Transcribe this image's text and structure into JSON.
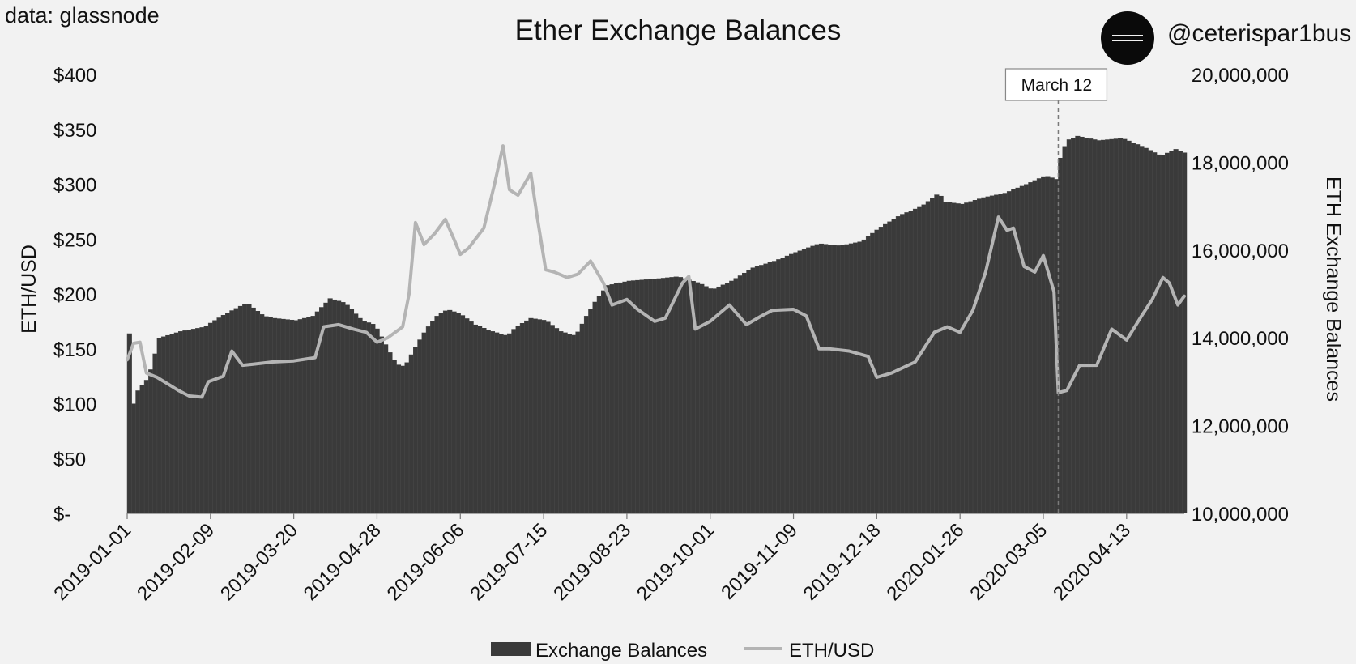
{
  "header": {
    "source": "data: glassnode",
    "handle": "@ceterispar1bus"
  },
  "colors": {
    "background": "#f2f2f2",
    "bars": "#3a3a3a",
    "line": "#b4b4b4",
    "text": "#111111"
  },
  "icons": {
    "avatar": "circle-logo-icon"
  },
  "chart_data": {
    "type": "bar",
    "title": "Ether Exchange Balances",
    "ylabel_left": "ETH/USD",
    "ylabel_right": "ETH Exchange Balances",
    "y_left_range": [
      0,
      400
    ],
    "y_right_range": [
      10000000,
      20000000
    ],
    "y_left_ticks": [
      "$400",
      "$350",
      "$300",
      "$250",
      "$200",
      "$150",
      "$100",
      "$50",
      "$-"
    ],
    "y_right_ticks": [
      "20,000,000",
      "18,000,000",
      "16,000,000",
      "14,000,000",
      "12,000,000",
      "10,000,000"
    ],
    "x_tick_labels": [
      "2019-01-01",
      "2019-02-09",
      "2019-03-20",
      "2019-04-28",
      "2019-06-06",
      "2019-07-15",
      "2019-08-23",
      "2019-10-01",
      "2019-11-09",
      "2019-12-18",
      "2020-01-26",
      "2020-03-05",
      "2020-04-13"
    ],
    "x_range": [
      "2019-01-01",
      "2020-05-10"
    ],
    "grid": false,
    "legend_position": "bottom",
    "annotation": {
      "label": "March 12",
      "date": "2020-03-12"
    },
    "series": [
      {
        "name": "Exchange Balances",
        "kind": "bar",
        "axis": "right",
        "points": [
          [
            "2019-01-01",
            14100000
          ],
          [
            "2019-01-03",
            12500000
          ],
          [
            "2019-01-05",
            12800000
          ],
          [
            "2019-01-10",
            13100000
          ],
          [
            "2019-01-15",
            14000000
          ],
          [
            "2019-01-25",
            14150000
          ],
          [
            "2019-02-05",
            14250000
          ],
          [
            "2019-02-15",
            14550000
          ],
          [
            "2019-02-25",
            14800000
          ],
          [
            "2019-03-05",
            14500000
          ],
          [
            "2019-03-10",
            14450000
          ],
          [
            "2019-03-20",
            14400000
          ],
          [
            "2019-03-28",
            14500000
          ],
          [
            "2019-04-05",
            14900000
          ],
          [
            "2019-04-12",
            14800000
          ],
          [
            "2019-04-20",
            14400000
          ],
          [
            "2019-04-26",
            14300000
          ],
          [
            "2019-05-01",
            13850000
          ],
          [
            "2019-05-06",
            13400000
          ],
          [
            "2019-05-10",
            13350000
          ],
          [
            "2019-05-15",
            13800000
          ],
          [
            "2019-05-20",
            14200000
          ],
          [
            "2019-05-25",
            14500000
          ],
          [
            "2019-05-30",
            14650000
          ],
          [
            "2019-06-05",
            14550000
          ],
          [
            "2019-06-12",
            14300000
          ],
          [
            "2019-06-20",
            14150000
          ],
          [
            "2019-06-27",
            14050000
          ],
          [
            "2019-07-01",
            14250000
          ],
          [
            "2019-07-08",
            14450000
          ],
          [
            "2019-07-15",
            14400000
          ],
          [
            "2019-07-22",
            14150000
          ],
          [
            "2019-07-29",
            14050000
          ],
          [
            "2019-08-03",
            14500000
          ],
          [
            "2019-08-08",
            14900000
          ],
          [
            "2019-08-13",
            15200000
          ],
          [
            "2019-08-23",
            15300000
          ],
          [
            "2019-09-05",
            15350000
          ],
          [
            "2019-09-15",
            15400000
          ],
          [
            "2019-09-25",
            15250000
          ],
          [
            "2019-10-01",
            15100000
          ],
          [
            "2019-10-10",
            15300000
          ],
          [
            "2019-10-20",
            15600000
          ],
          [
            "2019-10-30",
            15750000
          ],
          [
            "2019-11-09",
            15950000
          ],
          [
            "2019-11-20",
            16150000
          ],
          [
            "2019-11-30",
            16100000
          ],
          [
            "2019-12-10",
            16200000
          ],
          [
            "2019-12-18",
            16500000
          ],
          [
            "2019-12-28",
            16800000
          ],
          [
            "2020-01-07",
            17000000
          ],
          [
            "2020-01-15",
            17300000
          ],
          [
            "2020-01-18",
            17100000
          ],
          [
            "2020-01-26",
            17050000
          ],
          [
            "2020-02-05",
            17200000
          ],
          [
            "2020-02-15",
            17300000
          ],
          [
            "2020-02-25",
            17500000
          ],
          [
            "2020-03-05",
            17700000
          ],
          [
            "2020-03-11",
            17600000
          ],
          [
            "2020-03-12",
            18100000
          ],
          [
            "2020-03-15",
            18500000
          ],
          [
            "2020-03-20",
            18600000
          ],
          [
            "2020-03-30",
            18500000
          ],
          [
            "2020-04-10",
            18550000
          ],
          [
            "2020-04-20",
            18350000
          ],
          [
            "2020-04-28",
            18150000
          ],
          [
            "2020-05-05",
            18300000
          ],
          [
            "2020-05-10",
            18200000
          ]
        ]
      },
      {
        "name": "ETH/USD",
        "kind": "line",
        "axis": "left",
        "points": [
          [
            "2019-01-01",
            140
          ],
          [
            "2019-01-04",
            155
          ],
          [
            "2019-01-07",
            156
          ],
          [
            "2019-01-10",
            128
          ],
          [
            "2019-01-15",
            124
          ],
          [
            "2019-01-20",
            118
          ],
          [
            "2019-01-25",
            112
          ],
          [
            "2019-01-30",
            107
          ],
          [
            "2019-02-05",
            106
          ],
          [
            "2019-02-08",
            120
          ],
          [
            "2019-02-15",
            125
          ],
          [
            "2019-02-19",
            148
          ],
          [
            "2019-02-24",
            135
          ],
          [
            "2019-03-01",
            136
          ],
          [
            "2019-03-10",
            138
          ],
          [
            "2019-03-20",
            139
          ],
          [
            "2019-03-30",
            142
          ],
          [
            "2019-04-03",
            170
          ],
          [
            "2019-04-10",
            172
          ],
          [
            "2019-04-17",
            168
          ],
          [
            "2019-04-23",
            165
          ],
          [
            "2019-04-28",
            156
          ],
          [
            "2019-05-03",
            160
          ],
          [
            "2019-05-10",
            170
          ],
          [
            "2019-05-13",
            200
          ],
          [
            "2019-05-16",
            265
          ],
          [
            "2019-05-20",
            245
          ],
          [
            "2019-05-25",
            255
          ],
          [
            "2019-05-30",
            268
          ],
          [
            "2019-06-03",
            250
          ],
          [
            "2019-06-06",
            236
          ],
          [
            "2019-06-10",
            242
          ],
          [
            "2019-06-17",
            260
          ],
          [
            "2019-06-22",
            300
          ],
          [
            "2019-06-26",
            335
          ],
          [
            "2019-06-29",
            295
          ],
          [
            "2019-07-03",
            290
          ],
          [
            "2019-07-09",
            310
          ],
          [
            "2019-07-12",
            270
          ],
          [
            "2019-07-16",
            222
          ],
          [
            "2019-07-20",
            220
          ],
          [
            "2019-07-26",
            215
          ],
          [
            "2019-07-31",
            218
          ],
          [
            "2019-08-06",
            230
          ],
          [
            "2019-08-12",
            210
          ],
          [
            "2019-08-16",
            190
          ],
          [
            "2019-08-23",
            195
          ],
          [
            "2019-08-28",
            186
          ],
          [
            "2019-09-05",
            175
          ],
          [
            "2019-09-10",
            178
          ],
          [
            "2019-09-18",
            210
          ],
          [
            "2019-09-21",
            216
          ],
          [
            "2019-09-24",
            168
          ],
          [
            "2019-10-01",
            175
          ],
          [
            "2019-10-10",
            190
          ],
          [
            "2019-10-18",
            172
          ],
          [
            "2019-10-25",
            180
          ],
          [
            "2019-10-30",
            185
          ],
          [
            "2019-11-09",
            186
          ],
          [
            "2019-11-15",
            180
          ],
          [
            "2019-11-21",
            150
          ],
          [
            "2019-11-26",
            150
          ],
          [
            "2019-12-05",
            148
          ],
          [
            "2019-12-14",
            143
          ],
          [
            "2019-12-18",
            124
          ],
          [
            "2019-12-25",
            128
          ],
          [
            "2020-01-05",
            138
          ],
          [
            "2020-01-14",
            165
          ],
          [
            "2020-01-20",
            170
          ],
          [
            "2020-01-26",
            165
          ],
          [
            "2020-02-01",
            185
          ],
          [
            "2020-02-07",
            220
          ],
          [
            "2020-02-13",
            270
          ],
          [
            "2020-02-17",
            258
          ],
          [
            "2020-02-20",
            260
          ],
          [
            "2020-02-25",
            225
          ],
          [
            "2020-03-01",
            220
          ],
          [
            "2020-03-05",
            235
          ],
          [
            "2020-03-10",
            202
          ],
          [
            "2020-03-12",
            110
          ],
          [
            "2020-03-16",
            112
          ],
          [
            "2020-03-22",
            135
          ],
          [
            "2020-03-30",
            135
          ],
          [
            "2020-04-06",
            168
          ],
          [
            "2020-04-13",
            158
          ],
          [
            "2020-04-20",
            180
          ],
          [
            "2020-04-25",
            195
          ],
          [
            "2020-04-30",
            215
          ],
          [
            "2020-05-03",
            210
          ],
          [
            "2020-05-07",
            190
          ],
          [
            "2020-05-10",
            198
          ]
        ]
      }
    ]
  }
}
